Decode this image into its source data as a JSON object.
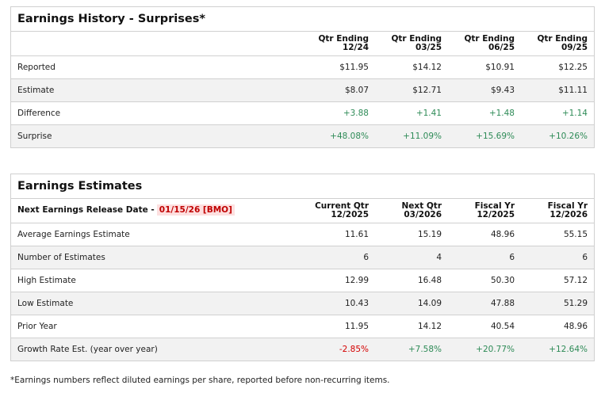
{
  "history": {
    "title": "Earnings History - Surprises*",
    "columns": [
      [
        "Qtr Ending",
        "12/24"
      ],
      [
        "Qtr Ending",
        "03/25"
      ],
      [
        "Qtr Ending",
        "06/25"
      ],
      [
        "Qtr Ending",
        "09/25"
      ]
    ],
    "rows": [
      {
        "label": "Reported",
        "values": [
          "$11.95",
          "$14.12",
          "$10.91",
          "$12.25"
        ],
        "tone": ""
      },
      {
        "label": "Estimate",
        "values": [
          "$8.07",
          "$12.71",
          "$9.43",
          "$11.11"
        ],
        "tone": ""
      },
      {
        "label": "Difference",
        "values": [
          "+3.88",
          "+1.41",
          "+1.48",
          "+1.14"
        ],
        "tone": "pos"
      },
      {
        "label": "Surprise",
        "values": [
          "+48.08%",
          "+11.09%",
          "+15.69%",
          "+10.26%"
        ],
        "tone": "pos"
      }
    ]
  },
  "estimates": {
    "title": "Earnings Estimates",
    "release_label": "Next Earnings Release Date -",
    "release_date": "01/15/26 [BMO]",
    "columns": [
      [
        "Current Qtr",
        "12/2025"
      ],
      [
        "Next Qtr",
        "03/2026"
      ],
      [
        "Fiscal Yr",
        "12/2025"
      ],
      [
        "Fiscal Yr",
        "12/2026"
      ]
    ],
    "rows": [
      {
        "label": "Average Earnings Estimate",
        "values": [
          "11.61",
          "15.19",
          "48.96",
          "55.15"
        ]
      },
      {
        "label": "Number of Estimates",
        "values": [
          "6",
          "4",
          "6",
          "6"
        ]
      },
      {
        "label": "High Estimate",
        "values": [
          "12.99",
          "16.48",
          "50.30",
          "57.12"
        ]
      },
      {
        "label": "Low Estimate",
        "values": [
          "10.43",
          "14.09",
          "47.88",
          "51.29"
        ]
      },
      {
        "label": "Prior Year",
        "values": [
          "11.95",
          "14.12",
          "40.54",
          "48.96"
        ]
      },
      {
        "label": "Growth Rate Est. (year over year)",
        "values": [
          "-2.85%",
          "+7.58%",
          "+20.77%",
          "+12.64%"
        ],
        "tones": [
          "neg",
          "pos",
          "pos",
          "pos"
        ]
      }
    ]
  },
  "footnote": "*Earnings numbers reflect diluted earnings per share, reported before non-recurring items.",
  "colors": {
    "positive": "#2e8b57",
    "negative": "#d40000"
  }
}
